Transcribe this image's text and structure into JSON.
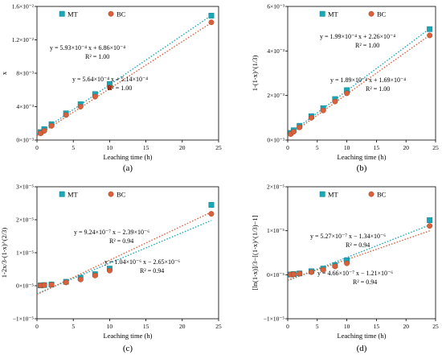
{
  "chart_data": [
    {
      "type": "scatter",
      "panel_label": "(a)",
      "xlabel": "Leaching time (h)",
      "ylabel": "x",
      "xlim": [
        0,
        25
      ],
      "ylim": [
        0,
        0.016
      ],
      "xticks": [
        0,
        5,
        10,
        15,
        20,
        25
      ],
      "xtick_labels": [
        "0",
        "5",
        "10",
        "15",
        "20",
        "25"
      ],
      "yticks": [
        0,
        0.004,
        0.008,
        0.012,
        0.016
      ],
      "ytick_labels": [
        "0×10⁻³",
        "4×10⁻³",
        "8×10⁻³",
        "1.2×10⁻²",
        "1.6×10⁻²"
      ],
      "legend": [
        "MT",
        "BC"
      ],
      "series": [
        {
          "name": "MT",
          "color": "#1aa7b8",
          "marker": "square",
          "x": [
            0.5,
            1,
            2,
            4,
            6,
            8,
            10,
            24
          ],
          "y": [
            0.00095,
            0.0013,
            0.0019,
            0.0032,
            0.0043,
            0.0055,
            0.0067,
            0.0149
          ],
          "fit": {
            "slope": 0.000593,
            "intercept": 0.000686
          },
          "equation": "y = 5.93×10⁻⁴ x + 6.86×10⁻⁴",
          "r2": "R² = 1.00"
        },
        {
          "name": "BC",
          "color": "#d9603b",
          "marker": "circle",
          "x": [
            0.5,
            1,
            2,
            4,
            6,
            8,
            10,
            24
          ],
          "y": [
            0.0008,
            0.0011,
            0.0017,
            0.003,
            0.004,
            0.0052,
            0.0063,
            0.0141
          ],
          "fit": {
            "slope": 0.000564,
            "intercept": 0.000514
          },
          "equation": "y = 5.64×10⁻⁴ x + 5.14×10⁻⁴",
          "r2": "R² = 1.00"
        }
      ]
    },
    {
      "type": "scatter",
      "panel_label": "(b)",
      "xlabel": "Leaching time (h)",
      "ylabel": "1-(1-x)^(1/3)",
      "xlim": [
        0,
        25
      ],
      "ylim": [
        0,
        0.006
      ],
      "xticks": [
        0,
        5,
        10,
        15,
        20,
        25
      ],
      "xtick_labels": [
        "0",
        "5",
        "10",
        "15",
        "20",
        "25"
      ],
      "yticks": [
        0,
        0.002,
        0.004,
        0.006
      ],
      "ytick_labels": [
        "0×10⁻³",
        "2×10⁻³",
        "4×10⁻³",
        "6×10⁻³"
      ],
      "legend": [
        "MT",
        "BC"
      ],
      "series": [
        {
          "name": "MT",
          "color": "#1aa7b8",
          "marker": "square",
          "x": [
            0.5,
            1,
            2,
            4,
            6,
            8,
            10,
            24
          ],
          "y": [
            0.00032,
            0.00044,
            0.00064,
            0.00107,
            0.00143,
            0.00184,
            0.00224,
            0.00498
          ],
          "fit": {
            "slope": 0.000199,
            "intercept": 0.000226
          },
          "equation": "y = 1.99×10⁻⁴ x + 2.26×10⁻⁴",
          "r2": "R² = 1.00"
        },
        {
          "name": "BC",
          "color": "#d9603b",
          "marker": "circle",
          "x": [
            0.5,
            1,
            2,
            4,
            6,
            8,
            10,
            24
          ],
          "y": [
            0.00027,
            0.00037,
            0.00057,
            0.001,
            0.00133,
            0.00173,
            0.0021,
            0.0047
          ],
          "fit": {
            "slope": 0.000189,
            "intercept": 0.000169
          },
          "equation": "y = 1.89×10⁻⁴ x + 1.69×10⁻⁴",
          "r2": "R² = 1.00"
        }
      ]
    },
    {
      "type": "scatter",
      "panel_label": "(c)",
      "xlabel": "Leaching time (h)",
      "ylabel": "1-2x/3-(1-x)^(2/3)",
      "xlim": [
        0,
        25
      ],
      "ylim": [
        -1e-05,
        3e-05
      ],
      "xticks": [
        0,
        5,
        10,
        15,
        20,
        25
      ],
      "xtick_labels": [
        "0",
        "5",
        "10",
        "15",
        "20",
        "25"
      ],
      "yticks": [
        -1e-05,
        0,
        1e-05,
        2e-05,
        3e-05
      ],
      "ytick_labels": [
        "−1×10⁻⁵",
        "0×10⁻⁵",
        "1×10⁻⁵",
        "2×10⁻⁵",
        "3×10⁻⁵"
      ],
      "legend": [
        "MT",
        "BC"
      ],
      "series": [
        {
          "name": "MT",
          "color": "#1aa7b8",
          "marker": "square",
          "x": [
            0.5,
            1,
            2,
            4,
            6,
            8,
            10,
            24
          ],
          "y": [
            1e-07,
            2e-07,
            4e-07,
            1.2e-06,
            2.4e-06,
            3.5e-06,
            5.2e-06,
            2.45e-05
          ],
          "fit": {
            "slope": 9.24e-07,
            "intercept": -2.39e-06
          },
          "equation": "y = 9.24×10⁻⁷ x − 2.39×10⁻⁶",
          "r2": "R² = 0.94"
        },
        {
          "name": "BC",
          "color": "#d9603b",
          "marker": "circle",
          "x": [
            0.5,
            1,
            2,
            4,
            6,
            8,
            10,
            24
          ],
          "y": [
            1e-07,
            2e-07,
            3e-07,
            1e-06,
            1.9e-06,
            3.1e-06,
            4.6e-06,
            2.18e-05
          ],
          "fit": {
            "slope": 1.04e-06,
            "intercept": -2.65e-06
          },
          "equation": "y = 1.04×10⁻⁶ x − 2.65×10⁻⁶",
          "r2": "R² = 0.94"
        }
      ]
    },
    {
      "type": "scatter",
      "panel_label": "(d)",
      "xlabel": "Leaching time (h)",
      "ylabel": "[ln(1-x)]/3−[(1-x)^(1/3)−1]",
      "xlim": [
        0,
        25
      ],
      "ylim": [
        -1e-05,
        2e-05
      ],
      "xticks": [
        0,
        5,
        10,
        15,
        20,
        25
      ],
      "xtick_labels": [
        "0",
        "5",
        "10",
        "15",
        "20",
        "25"
      ],
      "yticks": [
        -1e-05,
        0,
        1e-05,
        2e-05
      ],
      "ytick_labels": [
        "−1×10⁻⁵",
        "0×10⁻⁵",
        "1×10⁻⁵",
        "2×10⁻⁵"
      ],
      "legend": [
        "MT",
        "BC"
      ],
      "series": [
        {
          "name": "MT",
          "color": "#1aa7b8",
          "marker": "square",
          "x": [
            0.5,
            1,
            2,
            4,
            6,
            8,
            10,
            24
          ],
          "y": [
            5e-08,
            1.5e-07,
            3e-07,
            8e-07,
            1.4e-06,
            2.2e-06,
            3.3e-06,
            1.24e-05
          ],
          "fit": {
            "slope": 5.27e-07,
            "intercept": -1.34e-06
          },
          "equation": "y = 5.27×10⁻⁷ x − 1.34×10⁻⁶",
          "r2": "R² = 0.94"
        },
        {
          "name": "BC",
          "color": "#d9603b",
          "marker": "circle",
          "x": [
            0.5,
            1,
            2,
            4,
            6,
            8,
            10,
            24
          ],
          "y": [
            5e-08,
            1e-07,
            2.5e-07,
            6e-07,
            1.1e-06,
            1.9e-06,
            2.6e-06,
            1.11e-05
          ],
          "fit": {
            "slope": 4.66e-07,
            "intercept": -1.21e-06
          },
          "equation": "y = 4.66×10⁻⁷ x − 1.21×10⁻⁶",
          "r2": "R² = 0.94"
        }
      ]
    }
  ]
}
